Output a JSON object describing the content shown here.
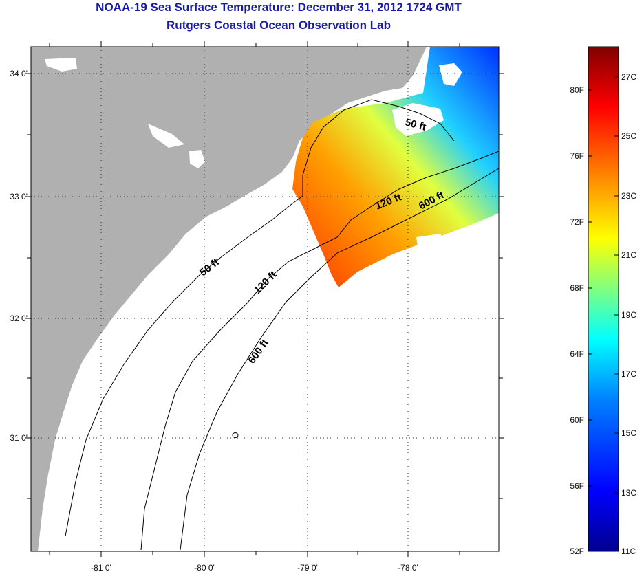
{
  "title": "NOAA-19 Sea Surface Temperature:  December 31, 2012 1724 GMT",
  "subtitle": "Rutgers Coastal Ocean Observation Lab",
  "map": {
    "lon_ticks": [
      "-81 0'",
      "-80 0'",
      "-79 0'",
      "-78 0'"
    ],
    "lat_ticks": [
      "34 0'",
      "33 0'",
      "32 0'",
      "31 0'"
    ],
    "contour_labels": [
      "50 ft",
      "120 ft",
      "600 ft",
      "50 ft",
      "120 ft",
      "600 ft"
    ],
    "colors": {
      "land": "#b0b0b0",
      "ocean": "#ffffff",
      "contour": "#000000",
      "cloud": "#ffffff"
    }
  },
  "colorbar": {
    "fahrenheit_labels": [
      "80F",
      "76F",
      "72F",
      "68F",
      "64F",
      "60F",
      "56F",
      "52F"
    ],
    "celsius_labels": [
      "27C",
      "25C",
      "23C",
      "21C",
      "19C",
      "17C",
      "15C",
      "13C",
      "11C"
    ],
    "colors": [
      "#00008f",
      "#0000ff",
      "#0080ff",
      "#00ffff",
      "#80ff80",
      "#ffff00",
      "#ff8000",
      "#ff0000",
      "#800000"
    ]
  }
}
